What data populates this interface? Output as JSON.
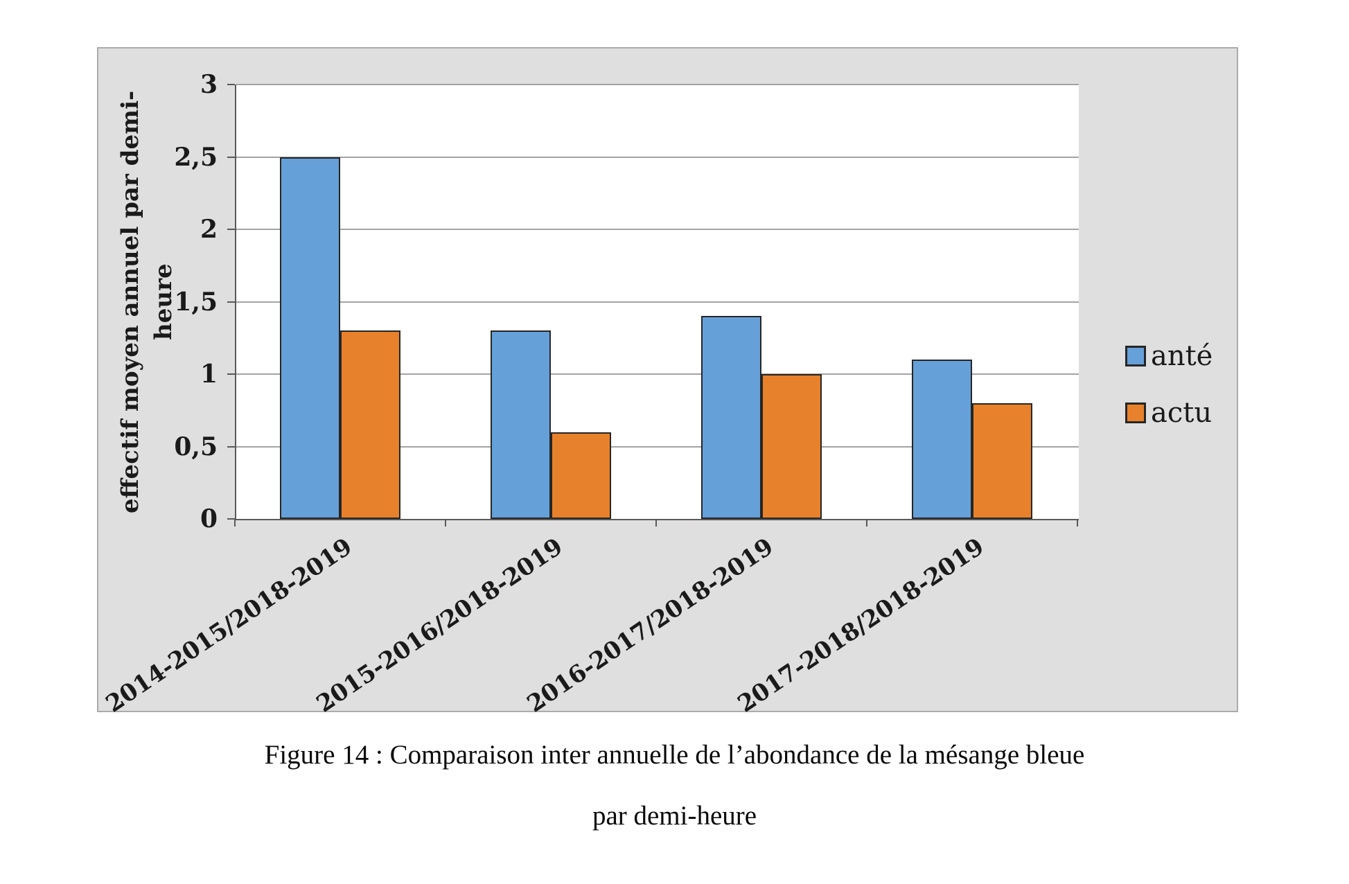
{
  "figure": {
    "caption_line1": "Figure 14 : Comparaison inter annuelle de l’abondance de la mésange bleue",
    "caption_line2": "par demi-heure"
  },
  "chart_data": {
    "type": "bar",
    "title": "",
    "xlabel": "",
    "ylabel": "effectif moyen annuel par demi-heure",
    "categories": [
      "2014-2015/2018-2019",
      "2015-2016/2018-2019",
      "2016-2017/2018-2019",
      "2017-2018/2018-2019"
    ],
    "series": [
      {
        "name": "anté",
        "color": "#66a0d8",
        "values": [
          2.5,
          1.3,
          1.4,
          1.1
        ]
      },
      {
        "name": "actu",
        "color": "#e8812b",
        "values": [
          1.3,
          0.6,
          1.0,
          0.8
        ]
      }
    ],
    "ylim": [
      0,
      3
    ],
    "ytick_step": 0.5,
    "ytick_labels": [
      "0",
      "0,5",
      "1",
      "1,5",
      "2",
      "2,5",
      "3"
    ],
    "decimal_separator": ",",
    "grid": true,
    "legend_position": "right",
    "x_label_rotation_deg": -34,
    "bar_border_color": "#262626"
  },
  "style_colors": {
    "figure_background": "#dfdfdf",
    "figure_border": "#ababab",
    "plot_background": "#ffffff",
    "gridline": "#a3a3a3",
    "axis_line": "#595959",
    "text": "#1a1a1a"
  }
}
